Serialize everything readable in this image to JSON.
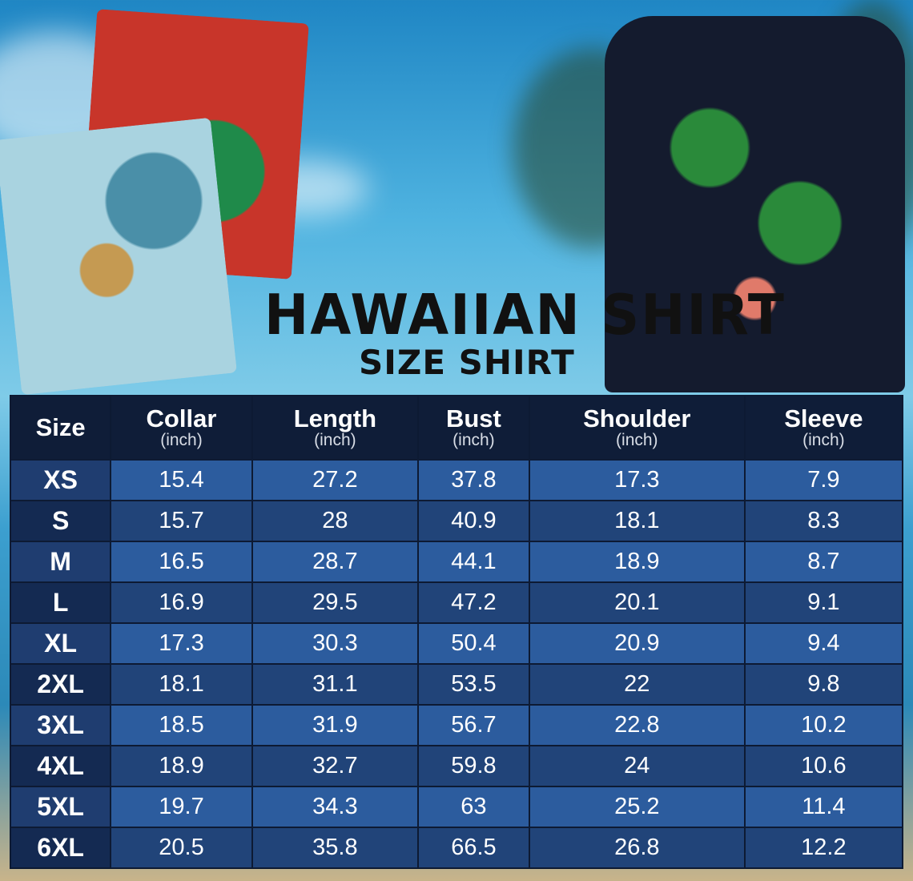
{
  "title": "HAWAIIAN SHIRT",
  "subtitle": "SIZE SHIRT",
  "table": {
    "headers": [
      {
        "label": "Size",
        "unit": ""
      },
      {
        "label": "Collar",
        "unit": "(inch)"
      },
      {
        "label": "Length",
        "unit": "(inch)"
      },
      {
        "label": "Bust",
        "unit": "(inch)"
      },
      {
        "label": "Shoulder",
        "unit": "(inch)"
      },
      {
        "label": "Sleeve",
        "unit": "(inch)"
      }
    ],
    "rows": [
      [
        "XS",
        "15.4",
        "27.2",
        "37.8",
        "17.3",
        "7.9"
      ],
      [
        "S",
        "15.7",
        "28",
        "40.9",
        "18.1",
        "8.3"
      ],
      [
        "M",
        "16.5",
        "28.7",
        "44.1",
        "18.9",
        "8.7"
      ],
      [
        "L",
        "16.9",
        "29.5",
        "47.2",
        "20.1",
        "9.1"
      ],
      [
        "XL",
        "17.3",
        "30.3",
        "50.4",
        "20.9",
        "9.4"
      ],
      [
        "2XL",
        "18.1",
        "31.1",
        "53.5",
        "22",
        "9.8"
      ],
      [
        "3XL",
        "18.5",
        "31.9",
        "56.7",
        "22.8",
        "10.2"
      ],
      [
        "4XL",
        "18.9",
        "32.7",
        "59.8",
        "24",
        "10.6"
      ],
      [
        "5XL",
        "19.7",
        "34.3",
        "63",
        "25.2",
        "11.4"
      ],
      [
        "6XL",
        "20.5",
        "35.8",
        "66.5",
        "26.8",
        "12.2"
      ]
    ]
  },
  "colors": {
    "header": "#0f1d38",
    "row_light": "#2c5c9e",
    "row_dark": "#214479"
  }
}
